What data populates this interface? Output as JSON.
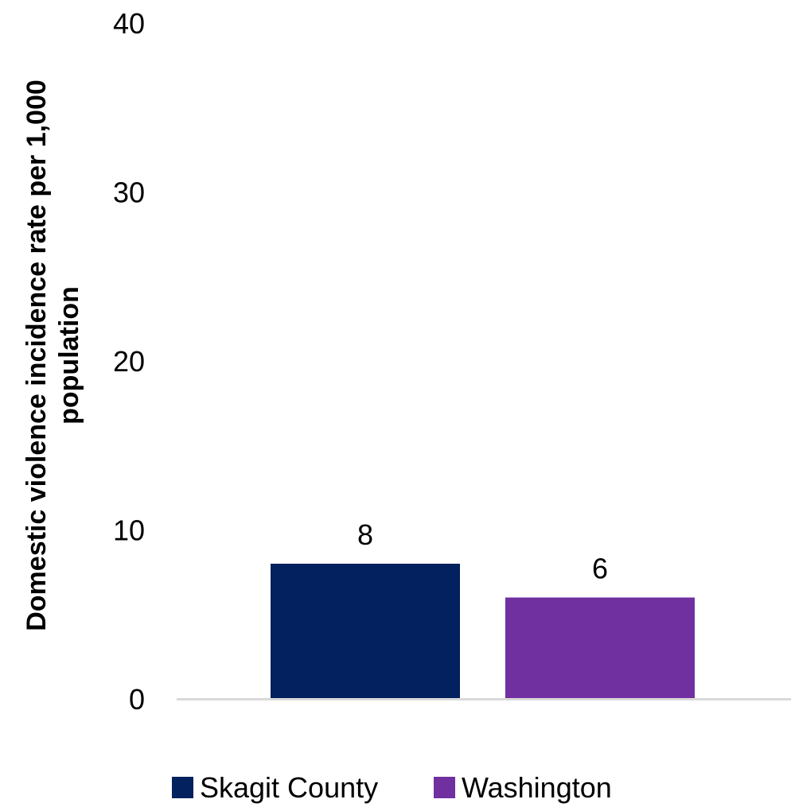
{
  "chart_data": {
    "type": "bar",
    "categories": [
      "Skagit County",
      "Washington"
    ],
    "values": [
      8,
      6
    ],
    "data_labels": [
      "8",
      "6"
    ],
    "colors": [
      "#03215e",
      "#7030a0"
    ],
    "ylabel": "Domestic violence incidence rate per 1,000 population",
    "ylabel_lines": [
      "Domestic violence incidence rate per 1,000",
      "population"
    ],
    "ylim": [
      0,
      40
    ],
    "yticks": [
      0,
      10,
      20,
      30,
      40
    ],
    "ytick_labels": [
      "0",
      "10",
      "20",
      "30",
      "40"
    ],
    "grid": false,
    "legend": {
      "position": "bottom",
      "entries": [
        {
          "label": "Skagit County",
          "color": "#03215e"
        },
        {
          "label": "Washington",
          "color": "#7030a0"
        }
      ]
    },
    "axis_color": "#d9d9d9"
  }
}
